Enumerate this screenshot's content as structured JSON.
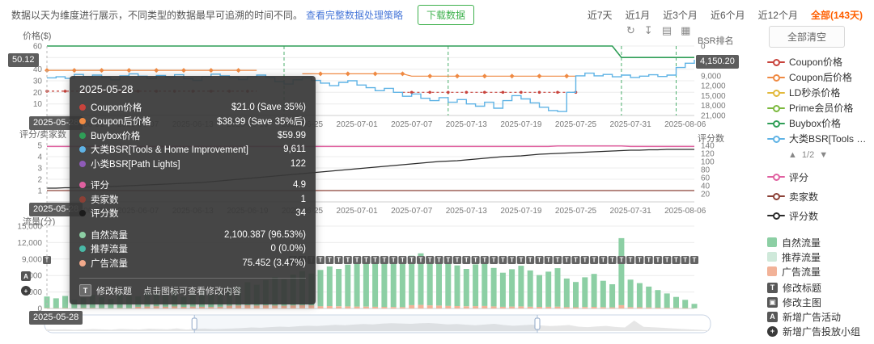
{
  "header": {
    "note": "数据以天为维度进行展示，不同类型的数据最早可追溯的时间不同。",
    "policy_link": "查看完整数据处理策略",
    "download_button": "下载数据",
    "ranges": [
      {
        "label": "近7天"
      },
      {
        "label": "近1月"
      },
      {
        "label": "近3个月"
      },
      {
        "label": "近6个月"
      },
      {
        "label": "近12个月"
      },
      {
        "label": "全部(143天)",
        "active": true
      }
    ]
  },
  "toolbar": {
    "icons": [
      {
        "name": "refresh",
        "glyph": "↻"
      },
      {
        "name": "download",
        "glyph": "↧"
      },
      {
        "name": "restore-zoom",
        "glyph": "▤"
      },
      {
        "name": "save-image",
        "glyph": "▦"
      }
    ]
  },
  "badges": {
    "price_left": "50.12",
    "bsr_right": "4,150.20",
    "date": "2025-05-28"
  },
  "tooltip": {
    "date": "2025-05-28",
    "groups": [
      {
        "rows": [
          {
            "color": "#c8433c",
            "label": "Coupon价格",
            "value": "$21.0 (Save 35%)"
          },
          {
            "color": "#ef8a43",
            "label": "Coupon后价格",
            "value": "$38.99 (Save 35%后)"
          },
          {
            "color": "#2f9e57",
            "label": "Buybox价格",
            "value": "$59.99"
          },
          {
            "color": "#5fb3e5",
            "label": "大类BSR[Tools & Home Improvement]",
            "value": "9,611"
          },
          {
            "color": "#8e5bb8",
            "label": "小类BSR[Path Lights]",
            "value": "122"
          }
        ]
      },
      {
        "rows": [
          {
            "color": "#e060a0",
            "label": "评分",
            "value": "4.9"
          },
          {
            "color": "#8b4036",
            "label": "卖家数",
            "value": "1"
          },
          {
            "color": "#1b1b1b",
            "label": "评分数",
            "value": "34"
          }
        ]
      },
      {
        "rows": [
          {
            "color": "#8ccfa4",
            "label": "自然流量",
            "value": "2,100.387 (96.53%)"
          },
          {
            "color": "#49b8a6",
            "label": "推荐流量",
            "value": "0 (0.0%)"
          },
          {
            "color": "#f2a98b",
            "label": "广告流量",
            "value": "75.452 (3.47%)"
          }
        ]
      }
    ],
    "footer": {
      "icon_glyph": "T",
      "label": "修改标题",
      "hint": "点击图标可查看修改内容"
    }
  },
  "legend": {
    "clear_button": "全部清空",
    "pagination": {
      "up": "▲",
      "text": "1/2",
      "down": "▼"
    },
    "price_series": [
      {
        "label": "Coupon价格",
        "color": "#c8433c"
      },
      {
        "label": "Coupon后价格",
        "color": "#ef8a43"
      },
      {
        "label": "LD秒杀价格",
        "color": "#e2b93b"
      },
      {
        "label": "Prime会员价格",
        "color": "#7cb93e"
      },
      {
        "label": "Buybox价格",
        "color": "#2f9e57"
      },
      {
        "label": "大类BSR[Tools & Hom...",
        "color": "#5fb3e5"
      }
    ],
    "rating_series": [
      {
        "label": "评分",
        "color": "#e060a0"
      },
      {
        "label": "卖家数",
        "color": "#8b4036"
      },
      {
        "label": "评分数",
        "color": "#2b2b2b"
      }
    ],
    "traffic_series": [
      {
        "label": "自然流量",
        "color": "#8ccfa4"
      },
      {
        "label": "推荐流量",
        "color": "#cfe9da"
      },
      {
        "label": "广告流量",
        "color": "#f2b298"
      }
    ],
    "event_markers": [
      {
        "label": "修改标题",
        "glyph": "T",
        "shape": "square"
      },
      {
        "label": "修改主图",
        "glyph": "▣",
        "shape": "square"
      },
      {
        "label": "新增广告活动",
        "glyph": "A",
        "shape": "square"
      },
      {
        "label": "新增广告投放小组",
        "glyph": "+",
        "shape": "circle"
      }
    ]
  },
  "brush": {
    "handles": [
      0.225,
      0.74
    ]
  },
  "chart_data": [
    {
      "id": "price",
      "type": "line",
      "left_axis": {
        "title": "价格($)",
        "min": 0,
        "max": 60,
        "grid": [
          10,
          20,
          30,
          40,
          50,
          60
        ],
        "ticks": [
          {
            "v": 60,
            "label": "60"
          },
          {
            "v": 40,
            "label": "40"
          },
          {
            "v": 30,
            "label": "30"
          },
          {
            "v": 20,
            "label": "20"
          },
          {
            "v": 10,
            "label": "10"
          }
        ]
      },
      "right_axis": {
        "title": "BSR排名",
        "min": 0,
        "max": 21000,
        "inverted": true,
        "ticks": [
          {
            "v": 0,
            "label": "0"
          },
          {
            "v": 9000,
            "label": "9,000"
          },
          {
            "v": 12000,
            "label": "12,000"
          },
          {
            "v": 15000,
            "label": "15,000"
          },
          {
            "v": 18000,
            "label": "18,000"
          },
          {
            "v": 21000,
            "label": "21,000"
          }
        ]
      },
      "x_ticks": [
        {
          "day": 4,
          "label": "2025-06-01"
        },
        {
          "day": 10,
          "label": "2025-06-07"
        },
        {
          "day": 16,
          "label": "2025-06-13"
        },
        {
          "day": 22,
          "label": "2025-06-19"
        },
        {
          "day": 28,
          "label": "2025-06-25"
        },
        {
          "day": 34,
          "label": "2025-07-01"
        },
        {
          "day": 40,
          "label": "2025-07-07"
        },
        {
          "day": 46,
          "label": "2025-07-13"
        },
        {
          "day": 52,
          "label": "2025-07-19"
        },
        {
          "day": 58,
          "label": "2025-07-25"
        },
        {
          "day": 64,
          "label": "2025-07-31"
        },
        {
          "day": 70,
          "label": "2025-08-06"
        }
      ],
      "event_days": [
        26,
        44,
        63,
        69
      ],
      "series": [
        {
          "name": "Coupon价格",
          "color": "#c8433c",
          "axis": "left",
          "dash": "3 3",
          "marker": "dot",
          "segments": [
            {
              "from": 0,
              "to": 23,
              "value": 21
            },
            {
              "from": 39,
              "to": 58,
              "value": 20
            }
          ]
        },
        {
          "name": "Coupon后价格",
          "color": "#ef8a43",
          "axis": "left",
          "marker": "diamond",
          "segments": [
            {
              "from": 0,
              "to": 23,
              "value": 38.99
            },
            {
              "from": 28,
              "to": 39,
              "value": 35.99
            },
            {
              "from": 40,
              "to": 58,
              "value": 33.99
            }
          ]
        },
        {
          "name": "Buybox价格",
          "color": "#2f9e57",
          "axis": "left",
          "width": 1.6,
          "segments": [
            {
              "from": 0,
              "to": 62,
              "value": 59.99
            },
            {
              "from": 63,
              "to": 71,
              "value": 50.12
            }
          ]
        },
        {
          "name": "大类BSR",
          "color": "#5fb3e5",
          "axis": "right",
          "step": true,
          "width": 1.4,
          "values": [
            9611,
            9300,
            9800,
            8600,
            9200,
            8800,
            9500,
            10200,
            9000,
            8400,
            9100,
            9800,
            8900,
            9400,
            8700,
            9900,
            10400,
            9200,
            8500,
            9000,
            9600,
            10100,
            9300,
            8800,
            9500,
            10800,
            11500,
            10200,
            9600,
            10400,
            11200,
            12000,
            11000,
            10500,
            11800,
            12600,
            13500,
            12800,
            14000,
            15200,
            14500,
            15800,
            16500,
            15600,
            17000,
            16200,
            17500,
            18200,
            17000,
            18800,
            16500,
            15000,
            16000,
            17200,
            18500,
            19500,
            19800,
            14000,
            9000,
            8200,
            9000,
            8600,
            9300,
            8800,
            9500,
            9100,
            8700,
            9200,
            8800,
            6500,
            5200,
            4150
          ]
        }
      ]
    },
    {
      "id": "rating",
      "type": "line",
      "left_axis": {
        "title": "评分/卖家数",
        "min": 0,
        "max": 5,
        "grid": [
          1,
          2,
          3,
          4,
          5
        ],
        "ticks": [
          {
            "v": 5,
            "label": "5"
          },
          {
            "v": 4,
            "label": "4"
          },
          {
            "v": 3,
            "label": "3"
          },
          {
            "v": 2,
            "label": "2"
          },
          {
            "v": 1,
            "label": "1"
          }
        ]
      },
      "right_axis": {
        "title": "评分数",
        "min": 0,
        "max": 140,
        "ticks": [
          {
            "v": 140,
            "label": "140"
          },
          {
            "v": 120,
            "label": "120"
          },
          {
            "v": 100,
            "label": "100"
          },
          {
            "v": 80,
            "label": "80"
          },
          {
            "v": 60,
            "label": "60"
          },
          {
            "v": 40,
            "label": "40"
          },
          {
            "v": 20,
            "label": "20"
          }
        ]
      },
      "x_ticks": [
        {
          "day": 4,
          "label": "2025-06-01"
        },
        {
          "day": 10,
          "label": "2025-06-07"
        },
        {
          "day": 16,
          "label": "2025-06-13"
        },
        {
          "day": 22,
          "label": "2025-06-19"
        },
        {
          "day": 28,
          "label": "2025-06-25"
        },
        {
          "day": 34,
          "label": "2025-07-01"
        },
        {
          "day": 40,
          "label": "2025-07-07"
        },
        {
          "day": 46,
          "label": "2025-07-13"
        },
        {
          "day": 52,
          "label": "2025-07-19"
        },
        {
          "day": 58,
          "label": "2025-07-25"
        },
        {
          "day": 64,
          "label": "2025-07-31"
        },
        {
          "day": 70,
          "label": "2025-08-06"
        }
      ],
      "series": [
        {
          "name": "评分",
          "color": "#e060a0",
          "axis": "left",
          "width": 1.5,
          "segments": [
            {
              "from": 0,
              "to": 55,
              "value": 4.9
            },
            {
              "from": 56,
              "to": 63,
              "value": 4.95
            },
            {
              "from": 64,
              "to": 71,
              "value": 4.9
            }
          ]
        },
        {
          "name": "卖家数",
          "color": "#8b4036",
          "axis": "left",
          "constant": 1
        },
        {
          "name": "评分数",
          "color": "#2b2b2b",
          "axis": "right",
          "width": 1.3,
          "values": [
            34,
            34,
            35,
            35,
            36,
            37,
            38,
            38,
            39,
            40,
            41,
            42,
            43,
            44,
            45,
            46,
            47,
            48,
            50,
            52,
            54,
            56,
            58,
            60,
            62,
            64,
            66,
            68,
            70,
            72,
            74,
            76,
            78,
            80,
            82,
            84,
            86,
            88,
            90,
            92,
            94,
            96,
            98,
            100,
            101,
            102,
            104,
            106,
            108,
            110,
            112,
            113,
            114,
            116,
            118,
            119,
            120,
            121,
            122,
            123,
            124,
            125,
            126,
            127,
            128,
            128,
            129,
            129,
            130,
            130,
            130,
            130
          ]
        }
      ]
    },
    {
      "id": "traffic",
      "type": "bar",
      "left_axis": {
        "title": "流量(分)",
        "min": 0,
        "max": 15000,
        "grid": [
          3000,
          6000,
          9000,
          12000,
          15000
        ],
        "ticks": [
          {
            "v": 15000,
            "label": "15,000"
          },
          {
            "v": 12000,
            "label": "12,000"
          },
          {
            "v": 9000,
            "label": "9,000"
          },
          {
            "v": 6000,
            "label": "6,000"
          },
          {
            "v": 3000,
            "label": "3,000"
          },
          {
            "v": 0,
            "label": "0"
          }
        ]
      },
      "markers": {
        "glyph": "T",
        "singles": [
          0
        ],
        "from": 27,
        "to": 71
      },
      "edge_icons": [
        {
          "glyph": "A",
          "shape": "square"
        },
        {
          "glyph": "+",
          "shape": "circle"
        }
      ],
      "series": [
        {
          "name": "广告流量",
          "color": "#f2b298",
          "values": [
            75,
            60,
            80,
            50,
            70,
            90,
            65,
            55,
            85,
            70,
            300,
            350,
            400,
            320,
            380,
            290,
            340,
            310,
            280,
            330,
            500,
            550,
            600,
            520,
            580,
            540,
            490,
            560,
            610,
            570,
            420,
            450,
            400,
            380,
            360,
            340,
            310,
            290,
            270,
            250,
            600,
            650,
            580,
            520,
            480,
            440,
            400,
            430,
            460,
            380,
            320,
            350,
            380,
            330,
            290,
            310,
            340,
            260,
            230,
            270,
            300,
            240,
            210,
            610,
            250,
            220,
            190,
            160,
            130,
            100,
            75,
            40
          ]
        },
        {
          "name": "推荐流量",
          "color": "#cfe9da",
          "constant": 0
        },
        {
          "name": "自然流量",
          "color": "#8ccfa4",
          "values": [
            2100,
            1800,
            2200,
            1500,
            1900,
            2400,
            2000,
            1700,
            2600,
            2200,
            1900,
            2800,
            2400,
            2100,
            3200,
            1800,
            2500,
            2900,
            2300,
            2700,
            3100,
            3500,
            4200,
            3800,
            4600,
            5200,
            4800,
            5600,
            6200,
            5800,
            6600,
            7200,
            6800,
            7600,
            8200,
            7800,
            8600,
            9200,
            8800,
            8400,
            9000,
            9400,
            8600,
            7800,
            8200,
            7400,
            6800,
            7600,
            8400,
            7000,
            6200,
            6800,
            7400,
            6600,
            5800,
            6400,
            7000,
            5200,
            4600,
            5400,
            6000,
            4800,
            4200,
            12200,
            5000,
            4400,
            3800,
            3200,
            2600,
            2000,
            1500,
            800
          ]
        }
      ]
    }
  ]
}
